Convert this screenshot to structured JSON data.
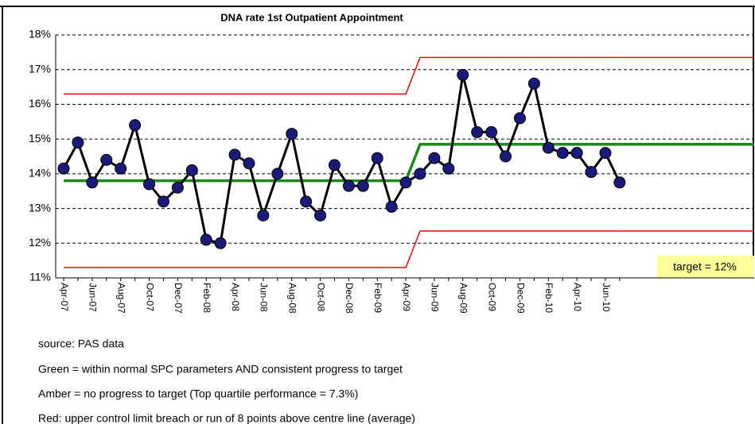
{
  "chart_data": {
    "type": "line",
    "title": "DNA rate 1st Outpatient Appointment",
    "categories": [
      "Apr-07",
      null,
      "Jun-07",
      null,
      "Aug-07",
      null,
      "Oct-07",
      null,
      "Dec-07",
      null,
      "Feb-08",
      null,
      "Apr-08",
      null,
      "Jun-08",
      null,
      "Aug-08",
      null,
      "Oct-08",
      null,
      "Dec-08",
      null,
      "Feb-09",
      null,
      "Apr-09",
      null,
      "Jun-09",
      null,
      "Aug-09",
      null,
      "Oct-09",
      null,
      "Dec-09",
      null,
      "Feb-10",
      null,
      "Apr-10",
      null,
      "Jun-10",
      null
    ],
    "series": [
      {
        "color": "#000000",
        "marker_color": "#1a1a7a",
        "values": [
          14.15,
          14.9,
          13.75,
          14.4,
          14.15,
          15.4,
          13.7,
          13.2,
          13.6,
          14.1,
          12.1,
          12.0,
          14.55,
          14.3,
          12.8,
          14.0,
          15.15,
          13.2,
          12.8,
          14.25,
          13.65,
          13.65,
          14.45,
          13.05,
          13.75,
          14.0,
          14.45,
          14.15,
          16.85,
          15.2,
          15.2,
          14.5,
          15.6,
          16.6,
          14.75,
          14.6,
          14.6,
          14.05,
          14.6,
          13.75
        ]
      },
      {
        "color": "#1a8a1a",
        "values": [
          13.8,
          13.8,
          13.8,
          13.8,
          13.8,
          13.8,
          13.8,
          13.8,
          13.8,
          13.8,
          13.8,
          13.8,
          13.8,
          13.8,
          13.8,
          13.8,
          13.8,
          13.8,
          13.8,
          13.8,
          13.8,
          13.8,
          13.8,
          13.8,
          13.8,
          14.85,
          14.85,
          14.85,
          14.85,
          14.85,
          14.85,
          14.85,
          14.85,
          14.85,
          14.85,
          14.85,
          14.85,
          14.85,
          14.85,
          14.85
        ]
      },
      {
        "color": "#ff0000",
        "values": [
          16.3,
          16.3,
          16.3,
          16.3,
          16.3,
          16.3,
          16.3,
          16.3,
          16.3,
          16.3,
          16.3,
          16.3,
          16.3,
          16.3,
          16.3,
          16.3,
          16.3,
          16.3,
          16.3,
          16.3,
          16.3,
          16.3,
          16.3,
          16.3,
          16.3,
          17.35,
          17.35,
          17.35,
          17.35,
          17.35,
          17.35,
          17.35,
          17.35,
          17.35,
          17.35,
          17.35,
          17.35,
          17.35,
          17.35,
          17.35
        ]
      },
      {
        "color": "#ff0000",
        "values": [
          11.3,
          11.3,
          11.3,
          11.3,
          11.3,
          11.3,
          11.3,
          11.3,
          11.3,
          11.3,
          11.3,
          11.3,
          11.3,
          11.3,
          11.3,
          11.3,
          11.3,
          11.3,
          11.3,
          11.3,
          11.3,
          11.3,
          11.3,
          11.3,
          11.3,
          12.35,
          12.35,
          12.35,
          12.35,
          12.35,
          12.35,
          12.35,
          12.35,
          12.35,
          12.35,
          12.35,
          12.35,
          12.35,
          12.35,
          12.35
        ]
      }
    ],
    "ylim": [
      11,
      18
    ],
    "yticks": [
      {
        "value": 11,
        "label": "11%"
      },
      {
        "value": 12,
        "label": "12%"
      },
      {
        "value": 13,
        "label": "13%"
      },
      {
        "value": 14,
        "label": "14%"
      },
      {
        "value": 15,
        "label": "15%"
      },
      {
        "value": 16,
        "label": "16%"
      },
      {
        "value": 17,
        "label": "17%"
      },
      {
        "value": 18,
        "label": "18%"
      }
    ],
    "grid": true,
    "annotation": "target = 12%",
    "notes": [
      "source: PAS data",
      "Green = within normal SPC parameters AND consistent progress to target",
      "Amber = no progress to target  (Top quartile performance = 7.3%)",
      "Red: upper control limit breach or run of 8 points above centre line (average)"
    ]
  }
}
